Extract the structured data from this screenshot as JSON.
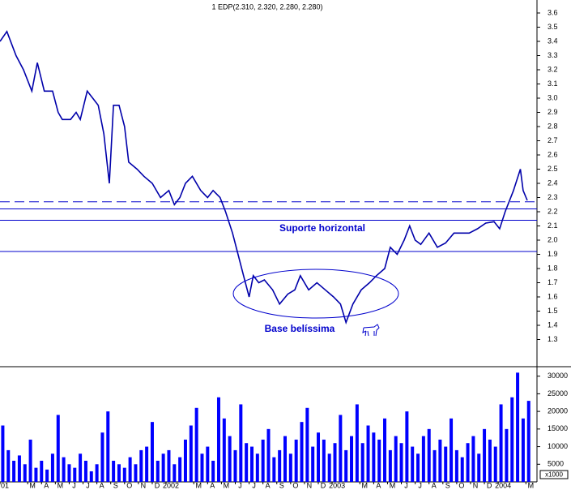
{
  "chart_data": [
    {
      "type": "line",
      "title": "1 EDP(2.310, 2.320, 2.280, 2.280)",
      "color": "#0000aa",
      "x": [
        0,
        0.5,
        1.16,
        1.7,
        2.3,
        2.7,
        3.2,
        3.8,
        4.2,
        4.5,
        5.1,
        5.5,
        5.8,
        6.3,
        6.7,
        7.1,
        7.5,
        7.9,
        8.2,
        8.6,
        9.0,
        9.3,
        9.9,
        10.4,
        11.0,
        11.6,
        12.2,
        12.6,
        13.0,
        13.4,
        13.9,
        14.5,
        15.0,
        15.4,
        15.9,
        16.3,
        16.8,
        17.2,
        17.6,
        18.0,
        18.3,
        18.7,
        19.1,
        19.7,
        20.2,
        20.8,
        21.3,
        21.7,
        22.3,
        22.9,
        23.5,
        24.1,
        24.6,
        25.0,
        25.5,
        26.1,
        26.7,
        27.2,
        27.8,
        28.2,
        28.7,
        29.2,
        29.6,
        30.0,
        30.4,
        31.0,
        31.6,
        32.2,
        32.8,
        33.3,
        33.9,
        34.5,
        35.1,
        35.7,
        36.1,
        36.5,
        37.1,
        37.6,
        37.8,
        38.1
      ],
      "values": [
        3.4,
        3.47,
        3.3,
        3.2,
        3.05,
        3.25,
        3.05,
        3.05,
        2.9,
        2.85,
        2.85,
        2.9,
        2.85,
        3.05,
        3.0,
        2.95,
        2.75,
        2.4,
        2.95,
        2.95,
        2.8,
        2.55,
        2.5,
        2.45,
        2.4,
        2.3,
        2.35,
        2.25,
        2.3,
        2.4,
        2.45,
        2.35,
        2.3,
        2.35,
        2.3,
        2.2,
        2.05,
        1.9,
        1.75,
        1.6,
        1.75,
        1.7,
        1.72,
        1.65,
        1.55,
        1.62,
        1.65,
        1.75,
        1.65,
        1.7,
        1.65,
        1.6,
        1.55,
        1.42,
        1.55,
        1.65,
        1.7,
        1.75,
        1.8,
        1.95,
        1.9,
        2.0,
        2.1,
        2.0,
        1.97,
        2.05,
        1.95,
        1.98,
        2.05,
        2.05,
        2.05,
        2.08,
        2.12,
        2.13,
        2.08,
        2.2,
        2.35,
        2.5,
        2.35,
        2.28
      ],
      "xlim": [
        0,
        38.8
      ],
      "ylim": [
        1.12,
        3.68
      ],
      "yticks": [
        1.3,
        1.4,
        1.5,
        1.6,
        1.7,
        1.8,
        1.9,
        {
          "value": 2,
          "label": "2.0"
        },
        2.1,
        2.2,
        2.3,
        2.4,
        2.5,
        2.6,
        2.7,
        2.8,
        2.9,
        {
          "value": 3,
          "label": "3.0"
        },
        3.1,
        3.2,
        3.3,
        3.4,
        3.5,
        3.6
      ],
      "reference_lines": [
        {
          "value": 2.27,
          "style": "dashed"
        },
        {
          "value": 2.22,
          "style": "solid"
        },
        {
          "value": 2.14,
          "style": "solid"
        },
        {
          "value": 1.92,
          "style": "solid"
        }
      ],
      "annotations": [
        "Suporte horizontal",
        "Base belíssima"
      ]
    },
    {
      "type": "bar",
      "color": "#0000ff",
      "y_label": "x1000",
      "x": [
        0.2,
        0.6,
        1.0,
        1.4,
        1.8,
        2.2,
        2.6,
        3.0,
        3.4,
        3.8,
        4.2,
        4.6,
        5.0,
        5.4,
        5.8,
        6.2,
        6.6,
        7.0,
        7.4,
        7.8,
        8.2,
        8.6,
        9.0,
        9.4,
        9.8,
        10.2,
        10.6,
        11.0,
        11.4,
        11.8,
        12.2,
        12.6,
        13.0,
        13.4,
        13.8,
        14.2,
        14.6,
        15.0,
        15.4,
        15.8,
        16.2,
        16.6,
        17.0,
        17.4,
        17.8,
        18.2,
        18.6,
        19.0,
        19.4,
        19.8,
        20.2,
        20.6,
        21.0,
        21.4,
        21.8,
        22.2,
        22.6,
        23.0,
        23.4,
        23.8,
        24.2,
        24.6,
        25.0,
        25.4,
        25.8,
        26.2,
        26.6,
        27.0,
        27.4,
        27.8,
        28.2,
        28.6,
        29.0,
        29.4,
        29.8,
        30.2,
        30.6,
        31.0,
        31.4,
        31.8,
        32.2,
        32.6,
        33.0,
        33.4,
        33.8,
        34.2,
        34.6,
        35.0,
        35.4,
        35.8,
        36.2,
        36.6,
        37.0,
        37.4,
        37.8,
        38.2
      ],
      "values": [
        16000,
        9000,
        6000,
        7500,
        5000,
        12000,
        4000,
        6000,
        3500,
        8000,
        19000,
        7000,
        5000,
        4000,
        8000,
        6000,
        3000,
        5000,
        14000,
        20000,
        6000,
        5000,
        4000,
        7000,
        5000,
        9000,
        10000,
        17000,
        6000,
        8000,
        9000,
        5000,
        7000,
        12000,
        16000,
        21000,
        8000,
        10000,
        6000,
        24000,
        18000,
        13000,
        9000,
        22000,
        11000,
        10000,
        8000,
        12000,
        15000,
        7000,
        9000,
        13000,
        8000,
        12000,
        17000,
        21000,
        10000,
        14000,
        12000,
        8000,
        11000,
        19000,
        9000,
        13000,
        22000,
        11000,
        16000,
        14000,
        12000,
        18000,
        9000,
        13000,
        11000,
        20000,
        10000,
        8000,
        13000,
        15000,
        9000,
        12000,
        10000,
        18000,
        9000,
        7000,
        11000,
        13000,
        8000,
        15000,
        12000,
        10000,
        22000,
        15000,
        24000,
        31000,
        18000,
        23000
      ],
      "xlim": [
        0,
        38.8
      ],
      "ylim": [
        0,
        32000
      ],
      "yticks": [
        5000,
        10000,
        15000,
        20000,
        25000,
        30000
      ],
      "xticks": [
        {
          "value": 0,
          "label": "01"
        },
        {
          "value": 2,
          "label": "M"
        },
        {
          "value": 3,
          "label": "A"
        },
        {
          "value": 4,
          "label": "M"
        },
        {
          "value": 5,
          "label": "J"
        },
        {
          "value": 6,
          "label": "J"
        },
        {
          "value": 7,
          "label": "A"
        },
        {
          "value": 8,
          "label": "S"
        },
        {
          "value": 9,
          "label": "O"
        },
        {
          "value": 10,
          "label": "N"
        },
        {
          "value": 11,
          "label": "D"
        },
        {
          "value": 12,
          "label": "2002"
        },
        {
          "value": 14,
          "label": "M"
        },
        {
          "value": 15,
          "label": "A"
        },
        {
          "value": 16,
          "label": "M"
        },
        {
          "value": 17,
          "label": "J"
        },
        {
          "value": 18,
          "label": "J"
        },
        {
          "value": 19,
          "label": "A"
        },
        {
          "value": 20,
          "label": "S"
        },
        {
          "value": 21,
          "label": "O"
        },
        {
          "value": 22,
          "label": "N"
        },
        {
          "value": 23,
          "label": "D"
        },
        {
          "value": 24,
          "label": "2003"
        },
        {
          "value": 26,
          "label": "M"
        },
        {
          "value": 27,
          "label": "A"
        },
        {
          "value": 28,
          "label": "M"
        },
        {
          "value": 29,
          "label": "J"
        },
        {
          "value": 30,
          "label": "J"
        },
        {
          "value": 31,
          "label": "A"
        },
        {
          "value": 32,
          "label": "S"
        },
        {
          "value": 33,
          "label": "O"
        },
        {
          "value": 34,
          "label": "N"
        },
        {
          "value": 35,
          "label": "D"
        },
        {
          "value": 36,
          "label": "2004"
        },
        {
          "value": 38,
          "label": "M"
        }
      ]
    }
  ]
}
